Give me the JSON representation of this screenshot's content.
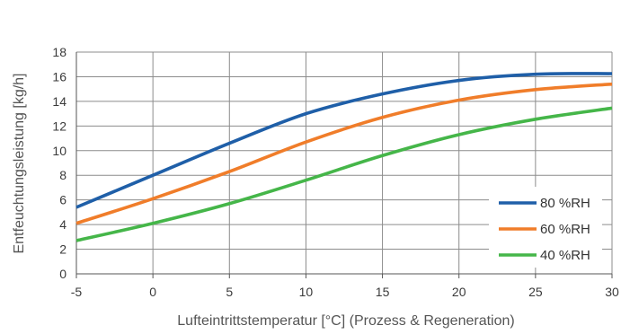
{
  "chart_data": {
    "type": "line",
    "title": "",
    "xlabel": "Lufteintrittstemperatur [°C] (Prozess & Regeneration)",
    "ylabel": "Entfeuchtungsleistung [kg/h]",
    "xlim": [
      -5,
      30
    ],
    "ylim": [
      0,
      18
    ],
    "xticks": [
      -5,
      0,
      5,
      10,
      15,
      20,
      25,
      30
    ],
    "yticks": [
      0,
      2,
      4,
      6,
      8,
      10,
      12,
      14,
      16,
      18
    ],
    "x": [
      -5,
      0,
      5,
      10,
      15,
      20,
      25,
      30
    ],
    "grid": true,
    "legend_position": "bottom-right",
    "series": [
      {
        "name": "80 %RH",
        "color": "#1f5fa8",
        "values": [
          5.4,
          8.0,
          10.6,
          13.0,
          14.6,
          15.7,
          16.2,
          16.25
        ]
      },
      {
        "name": "60 %RH",
        "color": "#f07d2a",
        "values": [
          4.1,
          6.1,
          8.3,
          10.7,
          12.7,
          14.1,
          14.95,
          15.4
        ]
      },
      {
        "name": "40 %RH",
        "color": "#45b649",
        "values": [
          2.7,
          4.1,
          5.7,
          7.6,
          9.6,
          11.3,
          12.55,
          13.45
        ]
      }
    ]
  }
}
